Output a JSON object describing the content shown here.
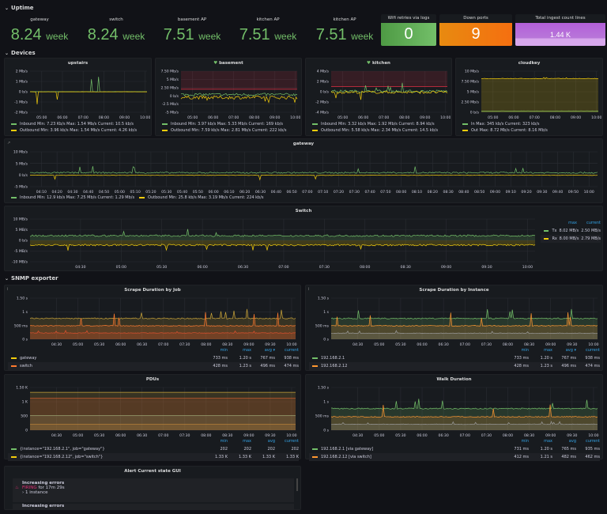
{
  "uptime": {
    "title": "Uptime",
    "stats": [
      {
        "label": "gateway",
        "value": "8.24",
        "unit": "week"
      },
      {
        "label": "switch",
        "value": "8.24",
        "unit": "week"
      },
      {
        "label": "basement AP",
        "value": "7.51",
        "unit": "week"
      },
      {
        "label": "kitchen AP",
        "value": "7.51",
        "unit": "week"
      },
      {
        "label": "kitchen AP",
        "value": "7.51",
        "unit": "week"
      }
    ],
    "boxes": [
      {
        "title": "Wifi retries via logs",
        "value": "0",
        "color": "#56a64b"
      },
      {
        "title": "Down ports",
        "value": "9",
        "color": "#f07a18"
      },
      {
        "title": "Total ingest count lines",
        "value": "1.44 K",
        "color": "#b877d9"
      }
    ]
  },
  "devices": {
    "title": "Devices"
  },
  "snmp": {
    "title": "SNMP exporter"
  },
  "colors": {
    "green": "#73bf69",
    "yellow": "#f2cc0c",
    "orange": "#ff9830",
    "red": "#e02f44",
    "gray": "#8e8e8e"
  },
  "charts": {
    "upstairs": {
      "title": "upstairs",
      "ylim": [
        -2,
        2
      ],
      "yticks": [
        {
          "v": 2,
          "label": "2 Mb/s"
        },
        {
          "v": 1,
          "label": "1 Mb/s"
        },
        {
          "v": 0,
          "label": "0 b/s"
        },
        {
          "v": -1,
          "label": "-1 Mb/s"
        },
        {
          "v": -2,
          "label": "-2 Mb/s"
        }
      ],
      "xticks": [
        "05:00",
        "06:00",
        "07:00",
        "08:00",
        "09:00",
        "10:00"
      ],
      "series": [
        {
          "name": "Inbound",
          "color": "#73bf69",
          "level": 0.01,
          "noise": 0.02,
          "spike": 1.5,
          "spike_rate": 0.01
        },
        {
          "name": "Outbound",
          "color": "#f2cc0c",
          "level": -0.01,
          "noise": 0.02,
          "spike": -1.5,
          "spike_rate": 0.01
        }
      ],
      "legend": [
        "Inbound  Min: 7.23 Kb/s  Max: 1.54 Mb/s  Current: 10.5 kb/s",
        "Outbound  Min: 3.96 kb/s  Max: 1.54 Mb/s  Current: 4.26 kb/s"
      ]
    },
    "basement": {
      "title": "basement",
      "ylim": [
        -5,
        7.5
      ],
      "threshold": 2,
      "yticks": [
        {
          "v": 7.5,
          "label": "7.50 Mb/s"
        },
        {
          "v": 5,
          "label": "5 Mb/s"
        },
        {
          "v": 2.5,
          "label": "2.50 Mb/s"
        },
        {
          "v": 0,
          "label": "0 b/s"
        },
        {
          "v": -2.5,
          "label": "-2.5 Mb/s"
        },
        {
          "v": -5,
          "label": "-5 Mb/s"
        }
      ],
      "xticks": [
        "05:00",
        "06:00",
        "07:00",
        "08:00",
        "09:00",
        "10:00"
      ],
      "series": [
        {
          "name": "Inbound",
          "color": "#73bf69",
          "level": 0.4,
          "noise": 0.8,
          "spike": 4,
          "spike_rate": 0.01
        },
        {
          "name": "Outbound",
          "color": "#f2cc0c",
          "level": -0.5,
          "noise": 1,
          "spike": -2,
          "spike_rate": 0.03
        }
      ],
      "legend": [
        "Inbound  Min: 3.97 kb/s  Max: 5.33 Mb/s  Current: 169 kb/s",
        "Outbound  Min: 7.59 kb/s  Max: 2.81 Mb/s  Current: 222 kb/s"
      ]
    },
    "kitchen": {
      "title": "kitchen",
      "ylim": [
        -4,
        4
      ],
      "threshold": 1,
      "yticks": [
        {
          "v": 4,
          "label": "4 Mb/s"
        },
        {
          "v": 2,
          "label": "2 Mb/s"
        },
        {
          "v": 0,
          "label": "0 b/s"
        },
        {
          "v": -2,
          "label": "-2 Mb/s"
        },
        {
          "v": -4,
          "label": "-4 Mb/s"
        }
      ],
      "xticks": [
        "05:00",
        "06:00",
        "07:00",
        "08:00",
        "09:00",
        "10:00"
      ],
      "series": [
        {
          "name": "Inbound",
          "color": "#73bf69",
          "level": 0.1,
          "noise": 0.5,
          "spike": 1.5,
          "spike_rate": 0.03
        },
        {
          "name": "Outbound",
          "color": "#f2cc0c",
          "level": -0.1,
          "noise": 0.5,
          "spike": -1.5,
          "spike_rate": 0.03
        }
      ],
      "legend": [
        "Inbound  Min: 3.32 kb/s  Max: 1.92 Mb/s  Current: 8.94 kb/s",
        "Outbound  Min: 5.58 kb/s  Max: 2.34 Mb/s  Current: 14.5 kb/s"
      ]
    },
    "cloudkey": {
      "title": "cloudkey",
      "ylim": [
        0,
        10
      ],
      "fill": true,
      "yticks": [
        {
          "v": 10,
          "label": "10 Mb/s"
        },
        {
          "v": 7.5,
          "label": "7.50 Mb/s"
        },
        {
          "v": 5,
          "label": "5 Mb/s"
        },
        {
          "v": 2.5,
          "label": "2.50 Mb/s"
        },
        {
          "v": 0,
          "label": "0 b/s"
        }
      ],
      "xticks": [
        "05:00",
        "06:00",
        "07:00",
        "08:00",
        "09:00",
        "10:00"
      ],
      "series": [
        {
          "name": "In",
          "color": "#73bf69",
          "level": 0.33,
          "noise": 0.02,
          "spike": 0,
          "spike_rate": 0
        },
        {
          "name": "Out",
          "color": "#f2cc0c",
          "level": 8.2,
          "noise": 0.15,
          "spike": 0.3,
          "spike_rate": 0.02
        }
      ],
      "legend": [
        "In  Max: 345 kb/s  Current: 323 kb/s",
        "Out  Max: 8.72 Mb/s  Current: 8.16 Mb/s"
      ]
    },
    "gateway": {
      "title": "gateway",
      "ylim": [
        -5,
        10
      ],
      "yticks": [
        {
          "v": 10,
          "label": "10 Mb/s"
        },
        {
          "v": 5,
          "label": "5 Mb/s"
        },
        {
          "v": 0,
          "label": "0 b/s"
        },
        {
          "v": -5,
          "label": "-5 Mb/s"
        }
      ],
      "xticks": [
        "04:10",
        "04:20",
        "04:30",
        "04:40",
        "04:50",
        "05:00",
        "05:10",
        "05:20",
        "05:30",
        "05:40",
        "05:50",
        "06:00",
        "06:10",
        "06:20",
        "06:30",
        "06:40",
        "06:50",
        "07:00",
        "07:10",
        "07:20",
        "07:30",
        "07:40",
        "07:50",
        "08:00",
        "08:10",
        "08:20",
        "08:30",
        "08:40",
        "08:50",
        "09:00",
        "09:10",
        "09:20",
        "09:30",
        "09:40",
        "09:50",
        "10:00"
      ],
      "series": [
        {
          "name": "Inbound",
          "color": "#73bf69",
          "level": 1.0,
          "noise": 0.6,
          "spike": 3,
          "spike_rate": 0.01
        },
        {
          "name": "Outbound",
          "color": "#f2cc0c",
          "level": -0.1,
          "noise": 0.2,
          "spike": -2,
          "spike_rate": 0.004
        }
      ],
      "legend": [
        "Inbound  Min: 12.9 kb/s  Max: 7.25 Mb/s  Current: 1.29 Mb/s",
        "Outbound  Min: 25.8 kb/s  Max: 3.19 Mb/s  Current: 224 kb/s"
      ]
    },
    "switch": {
      "title": "Switch",
      "ylim": [
        -10,
        10
      ],
      "fill": true,
      "yticks": [
        {
          "v": 10,
          "label": "10 MB/s"
        },
        {
          "v": 5,
          "label": "5 MB/s"
        },
        {
          "v": 0,
          "label": "0 b/s"
        },
        {
          "v": -5,
          "label": "-5 MB/s"
        },
        {
          "v": -10,
          "label": "-10 MB/s"
        }
      ],
      "xticks": [
        "04:30",
        "05:00",
        "05:30",
        "06:00",
        "06:30",
        "07:00",
        "07:30",
        "08:00",
        "08:30",
        "09:00",
        "09:30",
        "10:00"
      ],
      "series": [
        {
          "name": "Tx",
          "color": "#73bf69",
          "level": 2.2,
          "noise": 0.8,
          "spike": 3,
          "spike_rate": 0.01
        },
        {
          "name": "Rx",
          "color": "#f2cc0c",
          "level": -2.2,
          "noise": 0.8,
          "spike": -3,
          "spike_rate": 0.01
        }
      ],
      "table": {
        "headers": [
          "max",
          "current"
        ],
        "rows": [
          [
            "Tx",
            "8.02 MB/s",
            "2.50 MB/s"
          ],
          [
            "Rx",
            "8.00 MB/s",
            "2.79 MB/s"
          ]
        ]
      }
    },
    "scrape_job": {
      "title": "Scrape Duration by Job",
      "ylim": [
        0,
        1.5
      ],
      "fill": true,
      "yticks": [
        {
          "v": 1.5,
          "label": "1.50 s"
        },
        {
          "v": 1,
          "label": "1 s"
        },
        {
          "v": 0.5,
          "label": "500 ms"
        },
        {
          "v": 0,
          "label": "0 s"
        }
      ],
      "xticks": [
        "04:30",
        "05:00",
        "05:30",
        "06:00",
        "06:30",
        "07:00",
        "07:30",
        "08:00",
        "08:30",
        "09:00",
        "09:30",
        "10:00"
      ],
      "series": [
        {
          "name": "gateway",
          "color": "#c8a33a",
          "level": 0.76,
          "noise": 0.04,
          "spike": 0.35,
          "spike_rate": 0.03
        },
        {
          "name": "switch",
          "color": "#ff7a2e",
          "level": 0.49,
          "noise": 0.03,
          "spike": 0.5,
          "spike_rate": 0.03
        },
        {
          "name": "",
          "color": "#e0502e",
          "level": 0.23,
          "noise": 0.02,
          "spike": 0.1,
          "spike_rate": 0.03
        }
      ],
      "table": {
        "headers": [
          "min",
          "max",
          "avg ▾",
          "current"
        ],
        "rows": [
          [
            "gateway",
            "733 ms",
            "1.20 s",
            "767 ms",
            "938 ms"
          ],
          [
            "switch",
            "428 ms",
            "1.23 s",
            "496 ms",
            "474 ms"
          ]
        ]
      }
    },
    "scrape_instance": {
      "title": "Scrape Duration by Instance",
      "ylim": [
        0,
        1.5
      ],
      "fill": true,
      "yticks": [
        {
          "v": 1.5,
          "label": "1.50 s"
        },
        {
          "v": 1,
          "label": "1 s"
        },
        {
          "v": 0.5,
          "label": "500 ms"
        },
        {
          "v": 0,
          "label": "0 s"
        }
      ],
      "xticks": [
        "04:30",
        "05:00",
        "05:30",
        "06:00",
        "06:30",
        "07:00",
        "07:30",
        "08:00",
        "08:30",
        "09:00",
        "09:30",
        "10:00"
      ],
      "series": [
        {
          "name": "192.168.2.1",
          "color": "#73bf69",
          "level": 0.76,
          "noise": 0.04,
          "spike": 0.35,
          "spike_rate": 0.03
        },
        {
          "name": "192.168.2.12",
          "color": "#ff9830",
          "level": 0.49,
          "noise": 0.03,
          "spike": 0.5,
          "spike_rate": 0.03
        },
        {
          "name": "",
          "color": "#9a9a9a",
          "level": 0.22,
          "noise": 0.02,
          "spike": 0.1,
          "spike_rate": 0.03
        }
      ],
      "table": {
        "headers": [
          "min",
          "max",
          "avg ▾",
          "current"
        ],
        "rows": [
          [
            "192.168.2.1",
            "733 ms",
            "1.20 s",
            "767 ms",
            "938 ms"
          ],
          [
            "192.168.2.12",
            "428 ms",
            "1.23 s",
            "496 ms",
            "474 ms"
          ]
        ]
      }
    },
    "pdus": {
      "title": "PDUs",
      "ylim": [
        0,
        1500
      ],
      "fill": true,
      "yticks": [
        {
          "v": 1500,
          "label": "1.50 K"
        },
        {
          "v": 1000,
          "label": "1 K"
        },
        {
          "v": 500,
          "label": "500"
        },
        {
          "v": 0,
          "label": "0"
        }
      ],
      "xticks": [
        "04:30",
        "05:00",
        "05:30",
        "06:00",
        "06:30",
        "07:00",
        "07:30",
        "08:00",
        "08:30",
        "09:00",
        "09:30",
        "10:00"
      ],
      "series": [
        {
          "name": "{instance=\"192.168.2.12\", job=\"switch\"}",
          "color": "#c8a33a",
          "level": 1330,
          "noise": 0,
          "spike": 0,
          "spike_rate": 0
        },
        {
          "name": "",
          "color": "#e0602e",
          "level": 1120,
          "noise": 0,
          "spike": 0,
          "spike_rate": 0
        },
        {
          "name": "",
          "color": "#9aa070",
          "level": 510,
          "noise": 0,
          "spike": 0,
          "spike_rate": 0
        },
        {
          "name": "{instance=\"192.168.2.1\", job=\"gateway\"}",
          "color": "#c88a3a",
          "level": 202,
          "noise": 0,
          "spike": 0,
          "spike_rate": 0
        }
      ],
      "table": {
        "headers": [
          "min",
          "max",
          "avg",
          "current"
        ],
        "rows": [
          [
            "{instance=\"192.168.2.1\", job=\"gateway\"}",
            "202",
            "202",
            "202",
            "202"
          ],
          [
            "{instance=\"192.168.2.12\", job=\"switch\"}",
            "1.33 K",
            "1.33 K",
            "1.33 K",
            "1.33 K"
          ]
        ]
      }
    },
    "walk": {
      "title": "Walk Duration",
      "ylim": [
        0,
        1.5
      ],
      "fill": true,
      "yticks": [
        {
          "v": 1.5,
          "label": "1.50 s"
        },
        {
          "v": 1,
          "label": "1 s"
        },
        {
          "v": 0.5,
          "label": "500 ms"
        },
        {
          "v": 0,
          "label": "0 s"
        }
      ],
      "xticks": [
        "04:30",
        "05:00",
        "05:30",
        "06:00",
        "06:30",
        "07:00",
        "07:30",
        "08:00",
        "08:30",
        "09:00",
        "09:30",
        "10:00"
      ],
      "series": [
        {
          "name": "192.168.2.1 [via gateway]",
          "color": "#73bf69",
          "level": 0.76,
          "noise": 0.04,
          "spike": 0.35,
          "spike_rate": 0.03
        },
        {
          "name": "192.168.2.12 [via switch]",
          "color": "#ff9830",
          "level": 0.47,
          "noise": 0.03,
          "spike": 0.5,
          "spike_rate": 0.03
        },
        {
          "name": "",
          "color": "#9a9a9a",
          "level": 0.21,
          "noise": 0.02,
          "spike": 0.1,
          "spike_rate": 0.03
        }
      ],
      "table": {
        "headers": [
          "min",
          "max",
          "avg",
          "current"
        ],
        "rows": [
          [
            "192.168.2.1 [via gateway]",
            "731 ms",
            "1.20 s",
            "765 ms",
            "935 ms"
          ],
          [
            "192.168.2.12 [via switch]",
            "412 ms",
            "1.21 s",
            "482 ms",
            "462 ms"
          ]
        ]
      }
    }
  },
  "alerts": {
    "title": "Alert Current state GUI",
    "items": [
      {
        "name": "Increasing errors",
        "state": "FIRING",
        "duration": "for 17m 29s",
        "instances": "1 instance"
      },
      {
        "name": "Increasing errors"
      }
    ]
  }
}
